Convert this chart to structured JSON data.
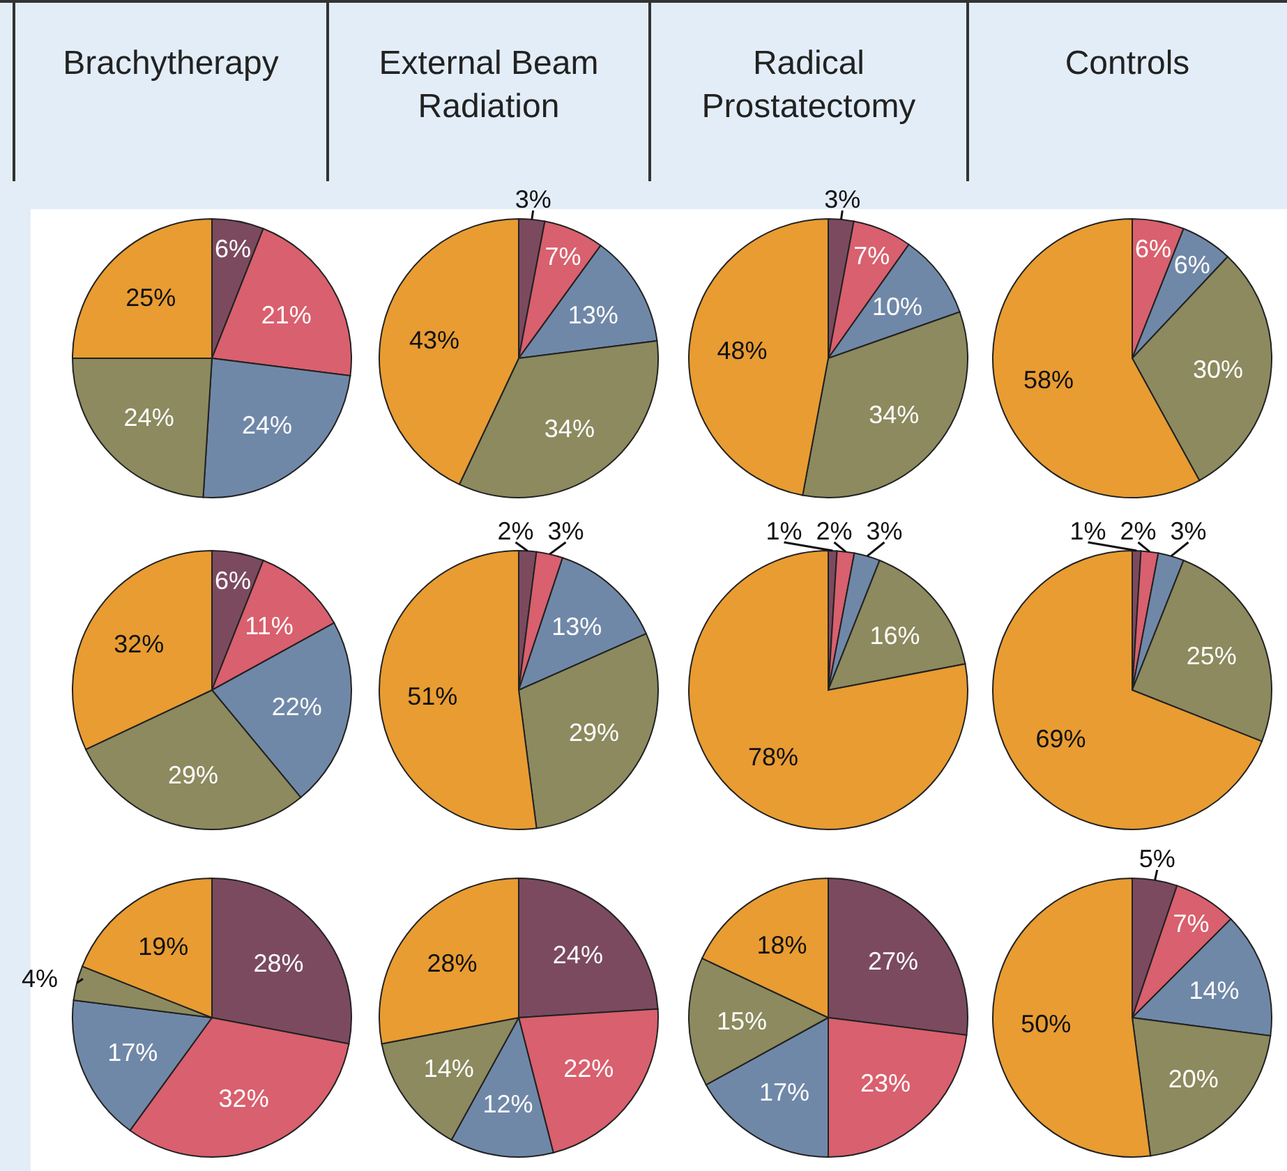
{
  "chart_data": [
    {
      "type": "pie",
      "title": "Brachytherapy",
      "categories": [
        null,
        null,
        null,
        null,
        null
      ],
      "values": [
        6,
        21,
        24,
        24,
        25
      ],
      "colors": [
        "#7b4a5e",
        "#d9606e",
        "#7088a8",
        "#8c8a5e",
        "#e89c32"
      ],
      "value_labels": [
        "6%",
        "21%",
        "24%",
        "24%",
        "25%"
      ]
    },
    {
      "type": "pie",
      "title": "External Beam Radiation",
      "categories": [
        null,
        null,
        null,
        null,
        null
      ],
      "values": [
        3,
        7,
        13,
        34,
        43
      ],
      "colors": [
        "#7b4a5e",
        "#d9606e",
        "#7088a8",
        "#8c8a5e",
        "#e89c32"
      ],
      "value_labels": [
        "3%",
        "7%",
        "13%",
        "34%",
        "43%"
      ]
    },
    {
      "type": "pie",
      "title": "Radical Prostatectomy",
      "categories": [
        null,
        null,
        null,
        null,
        null
      ],
      "values": [
        3,
        7,
        10,
        34,
        48
      ],
      "colors": [
        "#7b4a5e",
        "#d9606e",
        "#7088a8",
        "#8c8a5e",
        "#e89c32"
      ],
      "value_labels": [
        "3%",
        "7%",
        "10%",
        "34%",
        "48%"
      ]
    },
    {
      "type": "pie",
      "title": "Controls",
      "categories": [
        null,
        null,
        null,
        null
      ],
      "values": [
        6,
        6,
        30,
        58
      ],
      "colors": [
        "#d9606e",
        "#7088a8",
        "#8c8a5e",
        "#e89c32"
      ],
      "value_labels": [
        "6%",
        "6%",
        "30%",
        "58%"
      ]
    },
    {
      "type": "pie",
      "categories": [
        null,
        null,
        null,
        null,
        null
      ],
      "values": [
        6,
        11,
        22,
        29,
        32
      ],
      "colors": [
        "#7b4a5e",
        "#d9606e",
        "#7088a8",
        "#8c8a5e",
        "#e89c32"
      ],
      "value_labels": [
        "6%",
        "11%",
        "22%",
        "29%",
        "32%"
      ]
    },
    {
      "type": "pie",
      "categories": [
        null,
        null,
        null,
        null,
        null
      ],
      "values": [
        2,
        3,
        13,
        29,
        51
      ],
      "colors": [
        "#7b4a5e",
        "#d9606e",
        "#7088a8",
        "#8c8a5e",
        "#e89c32"
      ],
      "value_labels": [
        "2%",
        "3%",
        "13%",
        "29%",
        "51%"
      ]
    },
    {
      "type": "pie",
      "categories": [
        null,
        null,
        null,
        null,
        null
      ],
      "values": [
        1,
        2,
        3,
        16,
        78
      ],
      "colors": [
        "#7b4a5e",
        "#d9606e",
        "#7088a8",
        "#8c8a5e",
        "#e89c32"
      ],
      "value_labels": [
        "1%",
        "2%",
        "3%",
        "16%",
        "78%"
      ]
    },
    {
      "type": "pie",
      "categories": [
        null,
        null,
        null,
        null,
        null
      ],
      "values": [
        1,
        2,
        3,
        25,
        69
      ],
      "colors": [
        "#7b4a5e",
        "#d9606e",
        "#7088a8",
        "#8c8a5e",
        "#e89c32"
      ],
      "value_labels": [
        "1%",
        "2%",
        "3%",
        "25%",
        "69%"
      ]
    },
    {
      "type": "pie",
      "categories": [
        null,
        null,
        null,
        null,
        null
      ],
      "values": [
        28,
        32,
        17,
        4,
        19
      ],
      "colors": [
        "#7b4a5e",
        "#d9606e",
        "#7088a8",
        "#8c8a5e",
        "#e89c32"
      ],
      "value_labels": [
        "28%",
        "32%",
        "17%",
        "4%",
        "19%"
      ]
    },
    {
      "type": "pie",
      "categories": [
        null,
        null,
        null,
        null,
        null
      ],
      "values": [
        24,
        22,
        12,
        14,
        28
      ],
      "colors": [
        "#7b4a5e",
        "#d9606e",
        "#7088a8",
        "#8c8a5e",
        "#e89c32"
      ],
      "value_labels": [
        "24%",
        "22%",
        "12%",
        "14%",
        "28%"
      ]
    },
    {
      "type": "pie",
      "categories": [
        null,
        null,
        null,
        null,
        null
      ],
      "values": [
        27,
        23,
        17,
        15,
        18
      ],
      "colors": [
        "#7b4a5e",
        "#d9606e",
        "#7088a8",
        "#8c8a5e",
        "#e89c32"
      ],
      "value_labels": [
        "27%",
        "23%",
        "17%",
        "15%",
        "18%"
      ]
    },
    {
      "type": "pie",
      "categories": [
        null,
        null,
        null,
        null,
        null
      ],
      "values": [
        5,
        7,
        14,
        20,
        50
      ],
      "colors": [
        "#7b4a5e",
        "#d9606e",
        "#7088a8",
        "#8c8a5e",
        "#e89c32"
      ],
      "value_labels": [
        "5%",
        "7%",
        "14%",
        "20%",
        "50%"
      ]
    }
  ]
}
